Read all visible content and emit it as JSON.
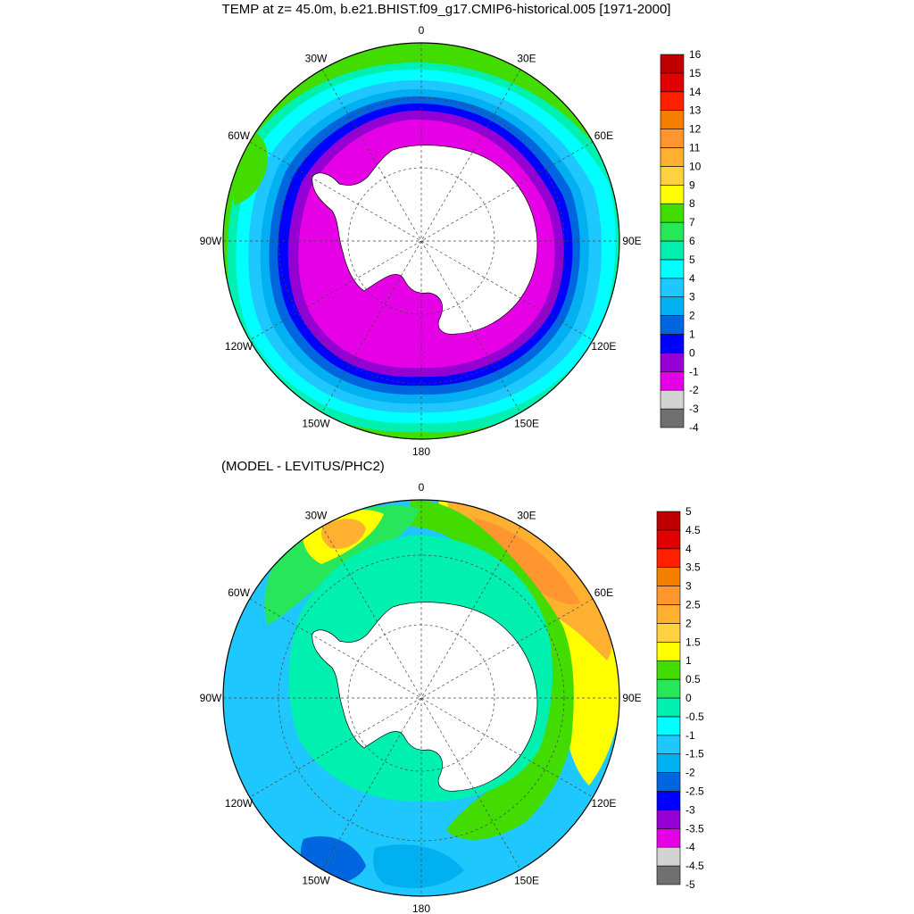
{
  "title": "TEMP at z=  45.0m, b.e21.BHIST.f09_g17.CMIP6-historical.005 [1971-2000]",
  "diff_title": "(MODEL - LEVITUS/PHC2)",
  "lon_labels": [
    "0",
    "30E",
    "60E",
    "90E",
    "120E",
    "150E",
    "180",
    "150W",
    "120W",
    "90W",
    "60W",
    "30W"
  ],
  "colors": {
    "land": "#ffffff",
    "top_scale": [
      "#707070",
      "#d3d3d3",
      "#e600e6",
      "#9400d3",
      "#0000ff",
      "#0066e0",
      "#00b0f0",
      "#1ec8ff",
      "#00ffff",
      "#00f0b0",
      "#28e65a",
      "#42dc00",
      "#ffff00",
      "#ffd040",
      "#ffb030",
      "#ff9630",
      "#f58000",
      "#ff2000",
      "#e00000",
      "#c00000"
    ],
    "bottom_scale": [
      "#707070",
      "#d3d3d3",
      "#e600e6",
      "#9400d3",
      "#0000ff",
      "#0066e0",
      "#00b0f0",
      "#1ec8ff",
      "#00ffff",
      "#00f0b0",
      "#28e65a",
      "#42dc00",
      "#ffff00",
      "#ffd040",
      "#ffb030",
      "#ff9630",
      "#f58000",
      "#ff2000",
      "#e00000",
      "#c00000"
    ]
  },
  "top_map": {
    "colorbar_labels": [
      "16",
      "15",
      "14",
      "13",
      "12",
      "11",
      "10",
      "9",
      "8",
      "7",
      "6",
      "5",
      "4",
      "3",
      "2",
      "1",
      "0",
      "-1",
      "-2",
      "-3",
      "-4"
    ]
  },
  "bottom_map": {
    "colorbar_labels": [
      "5",
      "4.5",
      "4",
      "3.5",
      "3",
      "2.5",
      "2",
      "1.5",
      "1",
      "0.5",
      "0",
      "-0.5",
      "-1",
      "-1.5",
      "-2",
      "-2.5",
      "-3",
      "-3.5",
      "-4",
      "-4.5",
      "-5"
    ]
  }
}
